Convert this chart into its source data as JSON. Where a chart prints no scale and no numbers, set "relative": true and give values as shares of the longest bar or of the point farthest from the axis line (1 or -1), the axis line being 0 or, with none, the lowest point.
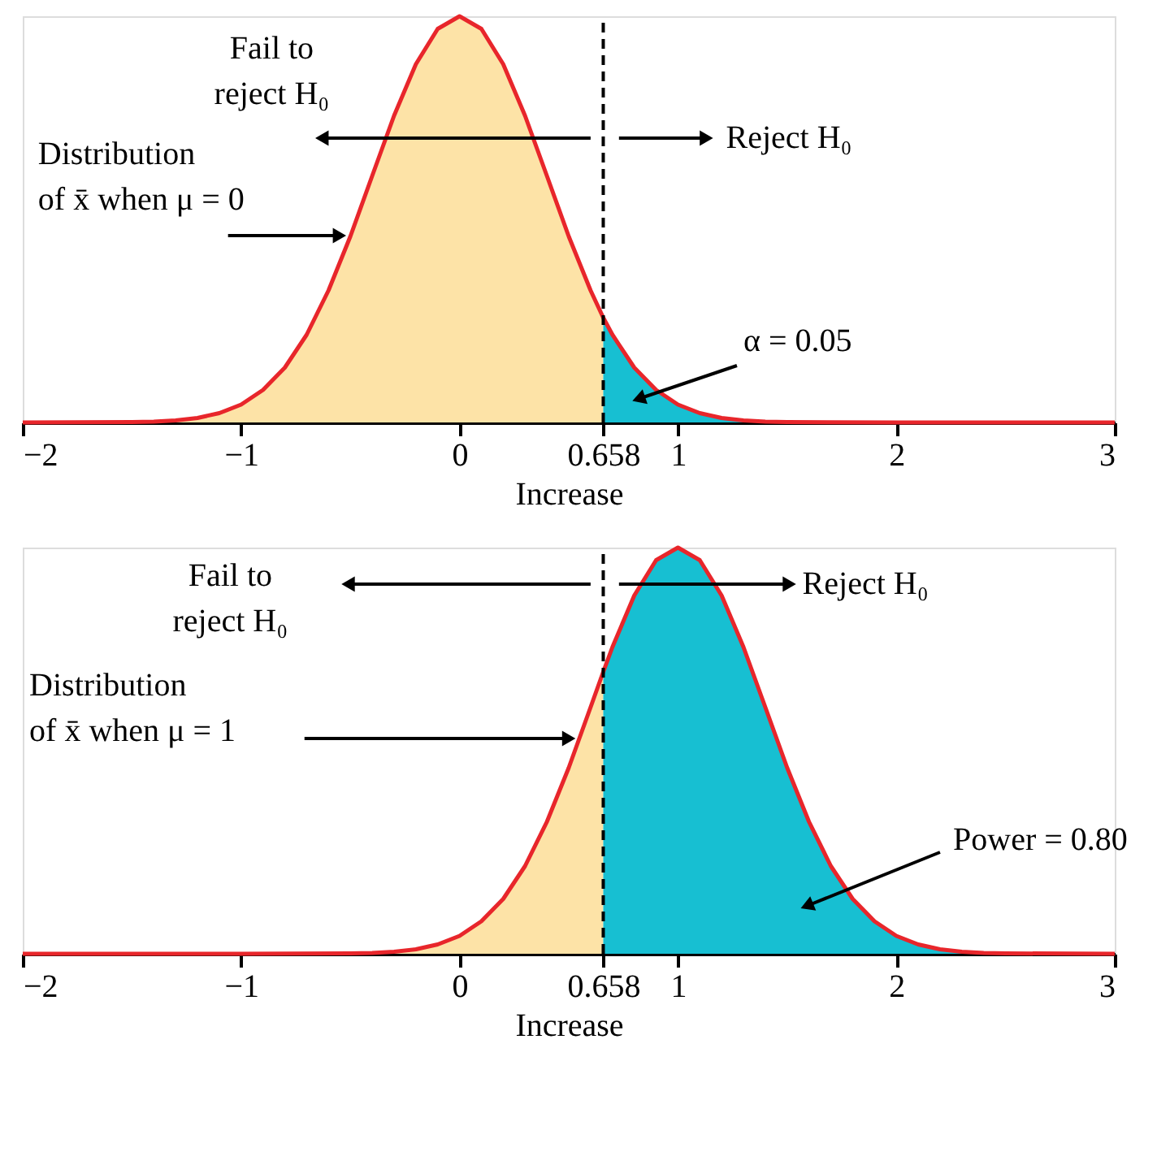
{
  "chart_data": [
    {
      "type": "area",
      "relative": true,
      "xlabel": "Increase",
      "xlim": [
        -2,
        3
      ],
      "xticks": [
        -2,
        -1,
        0,
        0.658,
        1,
        2,
        3
      ],
      "tick_labels": "x",
      "series": [
        {
          "color": "#fde3a7",
          "x": [
            -2,
            -1.5,
            -1.4,
            -1.3,
            -1.2,
            -1.1,
            -1.0,
            -0.9,
            -0.8,
            -0.7,
            -0.6,
            -0.5,
            -0.4,
            -0.3,
            -0.2,
            -0.1,
            0,
            0.1,
            0.2,
            0.3,
            0.4,
            0.5,
            0.6,
            0.658
          ],
          "values": [
            0,
            0.001,
            0.002,
            0.005,
            0.011,
            0.023,
            0.044,
            0.08,
            0.135,
            0.216,
            0.325,
            0.458,
            0.607,
            0.755,
            0.882,
            0.969,
            1,
            0.969,
            0.882,
            0.755,
            0.607,
            0.458,
            0.325,
            0.258
          ]
        },
        {
          "color": "#17bfd2",
          "x": [
            0.658,
            0.7,
            0.8,
            0.9,
            1.0,
            1.1,
            1.2,
            1.3,
            1.4,
            1.5,
            2,
            3
          ],
          "values": [
            0.258,
            0.216,
            0.135,
            0.08,
            0.044,
            0.023,
            0.011,
            0.005,
            0.002,
            0.001,
            0,
            0
          ]
        },
        {
          "type": "line",
          "color": "#e8262b",
          "x": [
            -2,
            -1.5,
            -1.4,
            -1.3,
            -1.2,
            -1.1,
            -1.0,
            -0.9,
            -0.8,
            -0.7,
            -0.6,
            -0.5,
            -0.4,
            -0.3,
            -0.2,
            -0.1,
            0,
            0.1,
            0.2,
            0.3,
            0.4,
            0.5,
            0.6,
            0.658,
            0.7,
            0.8,
            0.9,
            1.0,
            1.1,
            1.2,
            1.3,
            1.4,
            1.5,
            2,
            3
          ],
          "values": [
            0,
            0.001,
            0.002,
            0.005,
            0.011,
            0.023,
            0.044,
            0.08,
            0.135,
            0.216,
            0.325,
            0.458,
            0.607,
            0.755,
            0.882,
            0.969,
            1,
            0.969,
            0.882,
            0.755,
            0.607,
            0.458,
            0.325,
            0.258,
            0.216,
            0.135,
            0.08,
            0.044,
            0.023,
            0.011,
            0.005,
            0.002,
            0.001,
            0,
            0
          ]
        }
      ],
      "ref_lines": [
        {
          "axis": "x",
          "value": 0.658,
          "line_style": "dashed"
        }
      ],
      "annotations": [
        "Fail to reject H₀",
        "Reject H₀",
        "Distribution of x̄ when μ = 0",
        "α = 0.05"
      ]
    },
    {
      "type": "area",
      "relative": true,
      "xlabel": "Increase",
      "xlim": [
        -2,
        3
      ],
      "xticks": [
        -2,
        -1,
        0,
        0.658,
        1,
        2,
        3
      ],
      "tick_labels": "x",
      "series": [
        {
          "color": "#fde3a7",
          "x": [
            -2,
            -1,
            -0.5,
            -0.4,
            -0.3,
            -0.2,
            -0.1,
            0,
            0.1,
            0.2,
            0.3,
            0.4,
            0.5,
            0.6,
            0.658
          ],
          "values": [
            0,
            0,
            0.001,
            0.002,
            0.005,
            0.011,
            0.023,
            0.044,
            0.08,
            0.135,
            0.216,
            0.325,
            0.458,
            0.607,
            0.694
          ]
        },
        {
          "color": "#17bfd2",
          "x": [
            0.658,
            0.7,
            0.8,
            0.9,
            1,
            1.1,
            1.2,
            1.3,
            1.4,
            1.5,
            1.6,
            1.7,
            1.8,
            1.9,
            2,
            2.1,
            2.2,
            2.3,
            2.4,
            2.5,
            3
          ],
          "values": [
            0.694,
            0.755,
            0.882,
            0.969,
            1,
            0.969,
            0.882,
            0.755,
            0.607,
            0.458,
            0.325,
            0.216,
            0.135,
            0.08,
            0.044,
            0.023,
            0.011,
            0.005,
            0.002,
            0.001,
            0
          ]
        },
        {
          "type": "line",
          "color": "#e8262b",
          "x": [
            -2,
            -1,
            -0.5,
            -0.4,
            -0.3,
            -0.2,
            -0.1,
            0,
            0.1,
            0.2,
            0.3,
            0.4,
            0.5,
            0.6,
            0.658,
            0.7,
            0.8,
            0.9,
            1,
            1.1,
            1.2,
            1.3,
            1.4,
            1.5,
            1.6,
            1.7,
            1.8,
            1.9,
            2,
            2.1,
            2.2,
            2.3,
            2.4,
            2.5,
            3
          ],
          "values": [
            0,
            0,
            0.001,
            0.002,
            0.005,
            0.011,
            0.023,
            0.044,
            0.08,
            0.135,
            0.216,
            0.325,
            0.458,
            0.607,
            0.694,
            0.755,
            0.882,
            0.969,
            1,
            0.969,
            0.882,
            0.755,
            0.607,
            0.458,
            0.325,
            0.216,
            0.135,
            0.08,
            0.044,
            0.023,
            0.011,
            0.005,
            0.002,
            0.001,
            0
          ]
        }
      ],
      "ref_lines": [
        {
          "axis": "x",
          "value": 0.658,
          "line_style": "dashed"
        }
      ],
      "annotations": [
        "Fail to reject H₀",
        "Reject H₀",
        "Distribution of x̄ when μ = 1",
        "Power = 0.80"
      ]
    }
  ]
}
